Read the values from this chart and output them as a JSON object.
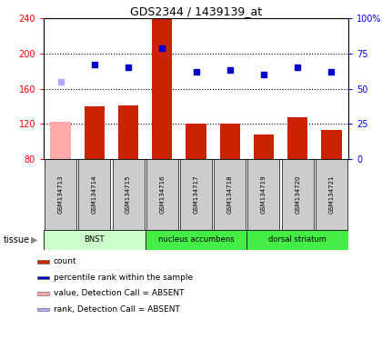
{
  "title": "GDS2344 / 1439139_at",
  "samples": [
    "GSM134713",
    "GSM134714",
    "GSM134715",
    "GSM134716",
    "GSM134717",
    "GSM134718",
    "GSM134719",
    "GSM134720",
    "GSM134721"
  ],
  "bar_values": [
    122,
    140,
    141,
    240,
    120,
    120,
    108,
    128,
    113
  ],
  "bar_colors": [
    "#ffaaaa",
    "#cc2200",
    "#cc2200",
    "#cc2200",
    "#cc2200",
    "#cc2200",
    "#cc2200",
    "#cc2200",
    "#cc2200"
  ],
  "rank_values": [
    55,
    67,
    65,
    79,
    62,
    63,
    60,
    65,
    62
  ],
  "rank_colors": [
    "#aaaaff",
    "#0000cc",
    "#0000cc",
    "#0000cc",
    "#0000cc",
    "#0000cc",
    "#0000cc",
    "#0000cc",
    "#0000cc"
  ],
  "ylim_left": [
    80,
    240
  ],
  "ylim_right": [
    0,
    100
  ],
  "yticks_left": [
    80,
    120,
    160,
    200,
    240
  ],
  "ytick_labels_left": [
    "80",
    "120",
    "160",
    "200",
    "240"
  ],
  "yticks_right": [
    0,
    25,
    50,
    75,
    100
  ],
  "ytick_labels_right": [
    "0",
    "25",
    "50",
    "75",
    "100%"
  ],
  "tissue_groups": [
    {
      "label": "BNST",
      "start": 0,
      "end": 3,
      "color": "#ccffcc"
    },
    {
      "label": "nucleus accumbens",
      "start": 3,
      "end": 6,
      "color": "#44ee44"
    },
    {
      "label": "dorsal striatum",
      "start": 6,
      "end": 9,
      "color": "#44ee44"
    }
  ],
  "legend_items": [
    {
      "color": "#cc2200",
      "label": "count"
    },
    {
      "color": "#0000cc",
      "label": "percentile rank within the sample"
    },
    {
      "color": "#ffaaaa",
      "label": "value, Detection Call = ABSENT"
    },
    {
      "color": "#aaaaff",
      "label": "rank, Detection Call = ABSENT"
    }
  ],
  "tissue_label": "tissue",
  "sample_box_color": "#cccccc",
  "grid_color": "#555555"
}
